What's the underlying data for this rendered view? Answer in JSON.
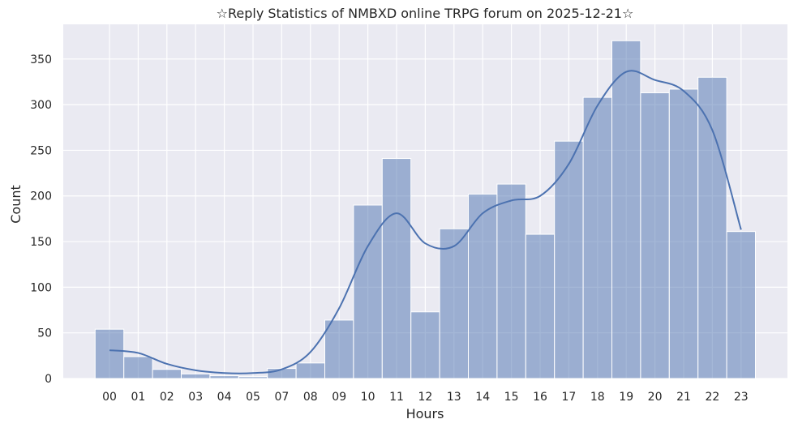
{
  "chart_data": {
    "type": "bar",
    "title": "☆Reply Statistics of NMBXD online TRPG forum on 2025-12-21☆",
    "xlabel": "Hours",
    "ylabel": "Count",
    "categories": [
      "00",
      "01",
      "02",
      "03",
      "04",
      "05",
      "07",
      "08",
      "09",
      "10",
      "11",
      "12",
      "13",
      "14",
      "15",
      "16",
      "17",
      "18",
      "19",
      "20",
      "21",
      "22",
      "23"
    ],
    "values": [
      54,
      24,
      10,
      5,
      3,
      2,
      11,
      17,
      64,
      190,
      241,
      73,
      164,
      202,
      213,
      158,
      260,
      308,
      370,
      313,
      317,
      330,
      161
    ],
    "kde": [
      31,
      28,
      16,
      9,
      6,
      6,
      10,
      29,
      77,
      145,
      181,
      148,
      145,
      181,
      195,
      200,
      235,
      299,
      336,
      327,
      315,
      272,
      163
    ],
    "ylim": [
      0,
      388
    ],
    "yticks": [
      0,
      50,
      100,
      150,
      200,
      250,
      300,
      350
    ],
    "grid": true,
    "legend": "none",
    "colors": {
      "bar": "#4c72b0",
      "line": "#4c72b0",
      "background": "#eaeaf2",
      "grid": "#ffffff"
    }
  }
}
